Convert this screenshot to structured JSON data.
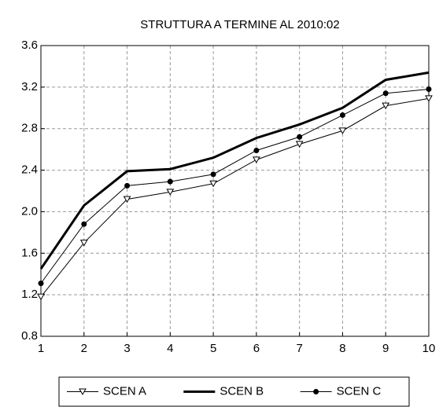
{
  "chart_data": {
    "type": "line",
    "title": "STRUTTURA A TERMINE AL 2010:02",
    "x": [
      1,
      2,
      3,
      4,
      5,
      6,
      7,
      8,
      9,
      10
    ],
    "xlim": [
      1,
      10
    ],
    "xticks": [
      1,
      2,
      3,
      4,
      5,
      6,
      7,
      8,
      9,
      10
    ],
    "ylim": [
      0.8,
      3.6
    ],
    "yticks": [
      0.8,
      1.2,
      1.6,
      {
        "value": 2,
        "label": "2.0"
      },
      2.4,
      2.8,
      3.2,
      3.6
    ],
    "grid": true,
    "legend": "bottom",
    "series": [
      {
        "name": "SCEN A",
        "color": "#000000",
        "marker": "triangle-down",
        "linewidth": 1,
        "values": [
          1.18,
          1.7,
          2.12,
          2.19,
          2.27,
          2.5,
          2.65,
          2.78,
          3.02,
          3.09
        ]
      },
      {
        "name": "SCEN B",
        "color": "#000000",
        "marker": "none",
        "linewidth": 3,
        "values": [
          1.45,
          2.06,
          2.39,
          2.41,
          2.52,
          2.71,
          2.84,
          3.0,
          3.27,
          3.34
        ]
      },
      {
        "name": "SCEN C",
        "color": "#000000",
        "marker": "circle",
        "linewidth": 1,
        "values": [
          1.31,
          1.88,
          2.25,
          2.29,
          2.36,
          2.59,
          2.72,
          2.93,
          3.14,
          3.18
        ]
      }
    ]
  }
}
